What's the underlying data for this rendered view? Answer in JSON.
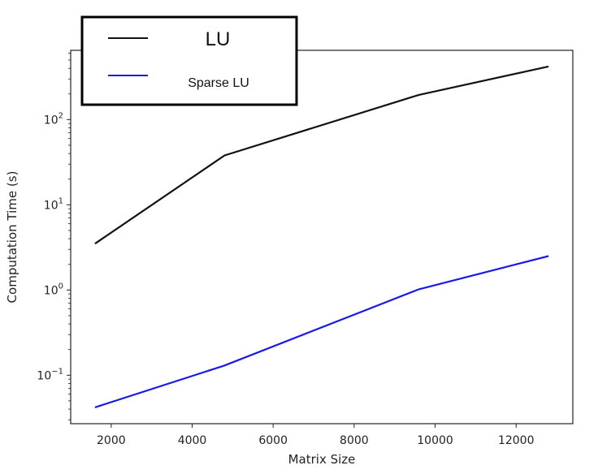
{
  "chart_data": {
    "type": "line",
    "title": "",
    "xlabel": "Matrix Size",
    "ylabel": "Computation Time (s)",
    "x_scale": "linear",
    "y_scale": "log",
    "xlim": [
      1000,
      13400
    ],
    "ylim": [
      0.027,
      650
    ],
    "x_ticks": [
      2000,
      4000,
      6000,
      8000,
      10000,
      12000
    ],
    "x_tick_labels": [
      "2000",
      "4000",
      "6000",
      "8000",
      "10000",
      "12000"
    ],
    "y_ticks": [
      {
        "base": "10",
        "exp": "2",
        "value": 100
      },
      {
        "base": "10",
        "exp": "1",
        "value": 10
      },
      {
        "base": "10",
        "exp": "0",
        "value": 1
      },
      {
        "base": "10",
        "exp": "−1",
        "value": 0.1
      }
    ],
    "grid": false,
    "legend_position": "top-left",
    "series": [
      {
        "name": "LU",
        "color": "#111111",
        "x": [
          1600,
          4800,
          9600,
          12800
        ],
        "y": [
          3.5,
          38,
          195,
          420
        ]
      },
      {
        "name": "Sparse LU",
        "color": "#1a1ae6",
        "x": [
          1600,
          4800,
          9600,
          12800
        ],
        "y": [
          0.042,
          0.13,
          1.02,
          2.5
        ]
      }
    ]
  }
}
